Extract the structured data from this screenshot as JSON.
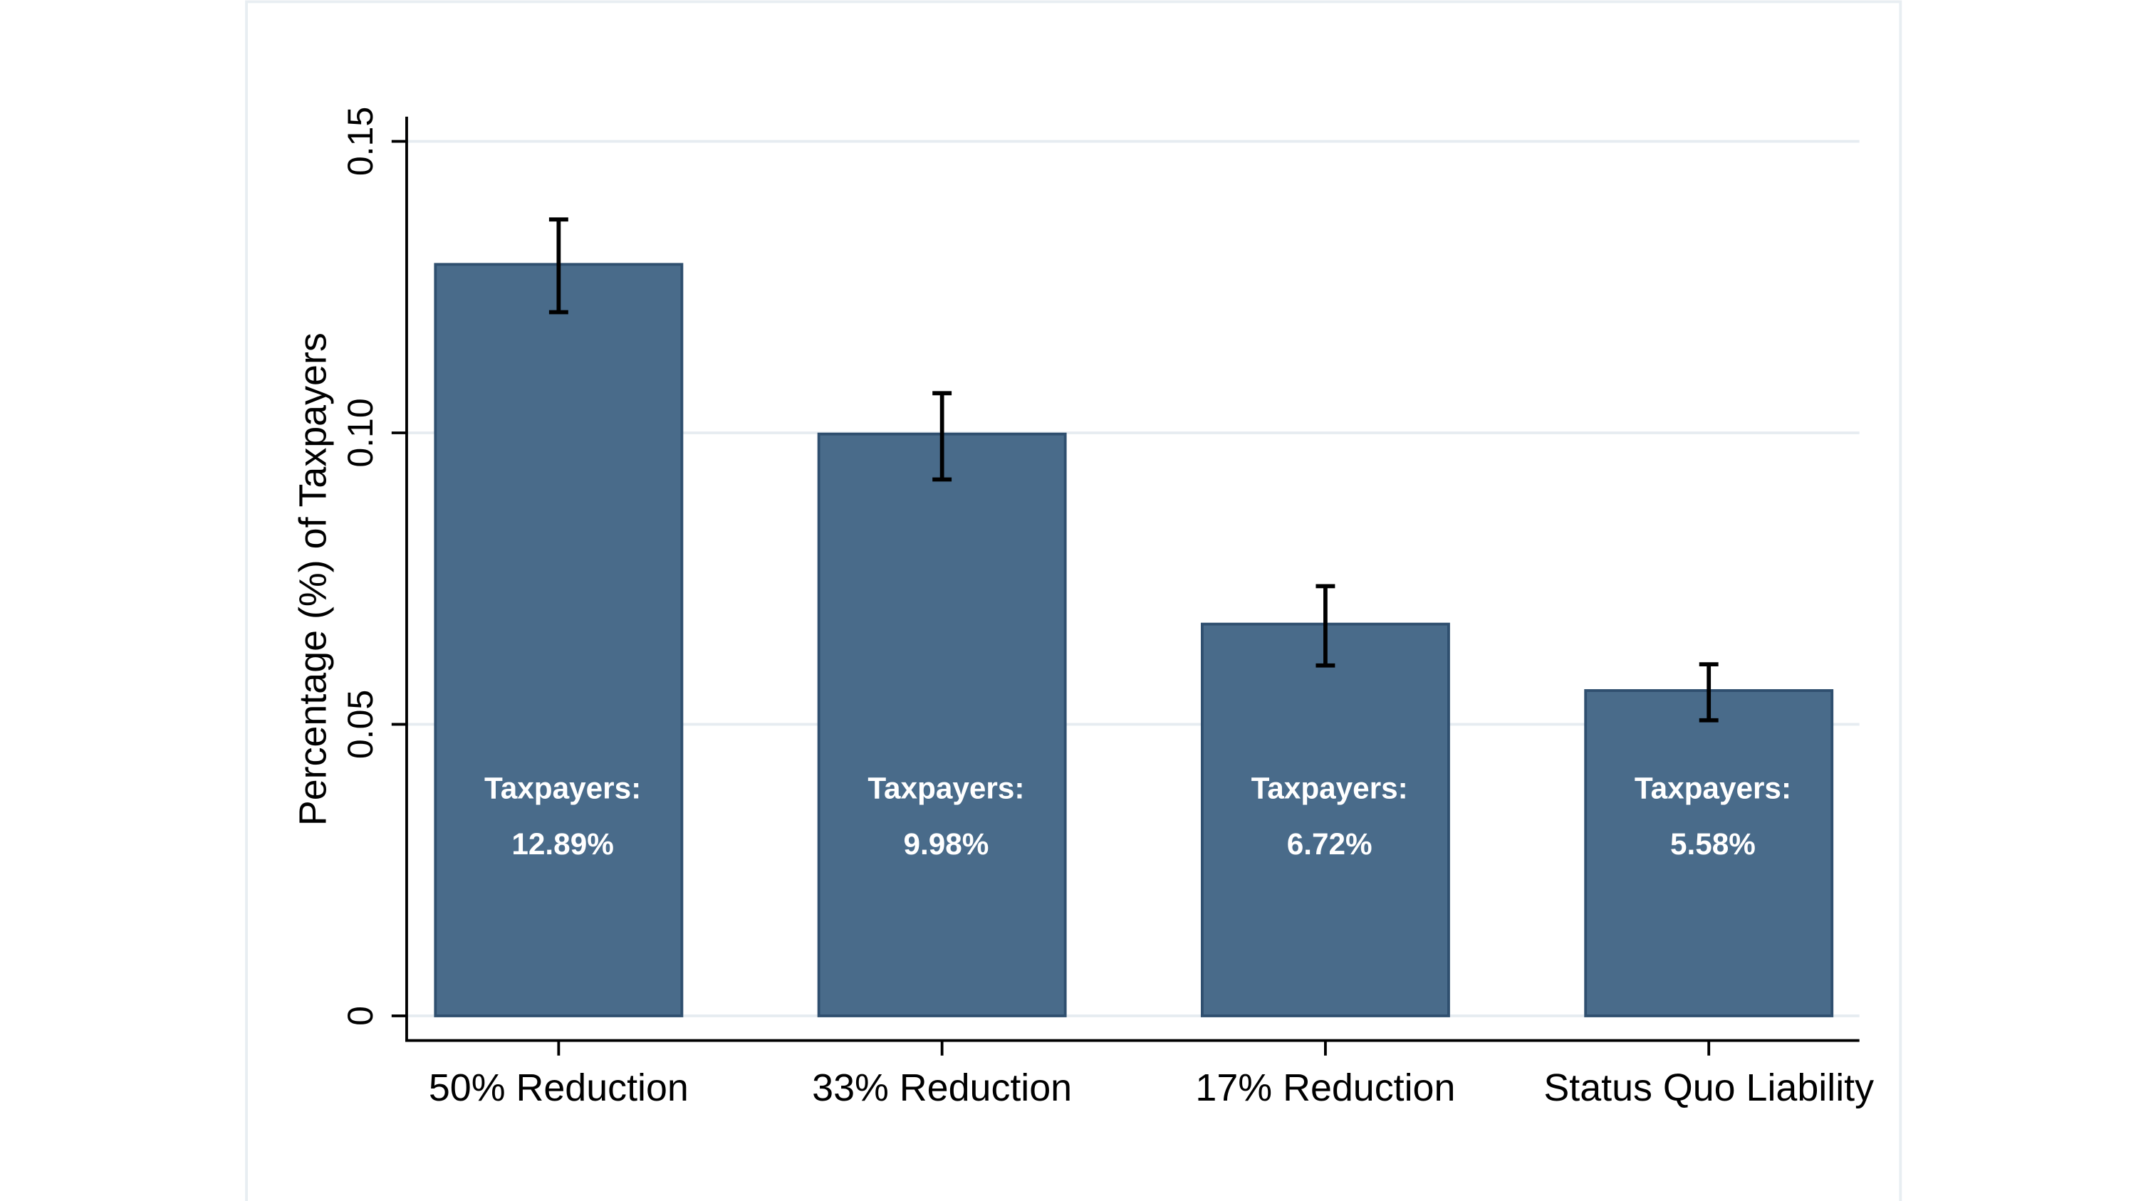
{
  "chart_data": {
    "type": "bar",
    "title": "",
    "xlabel": "",
    "ylabel": "Percentage (%) of Taxpayers",
    "categories": [
      "50% Reduction",
      "33% Reduction",
      "17% Reduction",
      "Status Quo Liability"
    ],
    "values": [
      0.1289,
      0.0998,
      0.0672,
      0.0558
    ],
    "error_low": [
      0.1207,
      0.092,
      0.0601,
      0.0507
    ],
    "error_high": [
      0.1366,
      0.1068,
      0.0737,
      0.0603
    ],
    "bar_labels": [
      {
        "line1": "Taxpayers:",
        "line2": "12.89%"
      },
      {
        "line1": "Taxpayers:",
        "line2": "9.98%"
      },
      {
        "line1": "Taxpayers:",
        "line2": "6.72%"
      },
      {
        "line1": "Taxpayers:",
        "line2": "5.58%"
      }
    ],
    "yticks": [
      0,
      0.05,
      0.1,
      0.15
    ],
    "ytick_labels": [
      "0",
      "0.05",
      "0.10",
      "0.15"
    ],
    "ylim": [
      0,
      0.15
    ],
    "grid": true,
    "colors": {
      "bar": "#496b8a",
      "bar_border": "#2f4f6f",
      "grid": "#e6ecf1",
      "error_bar": "#000000",
      "frame": "#e8eef2"
    }
  }
}
